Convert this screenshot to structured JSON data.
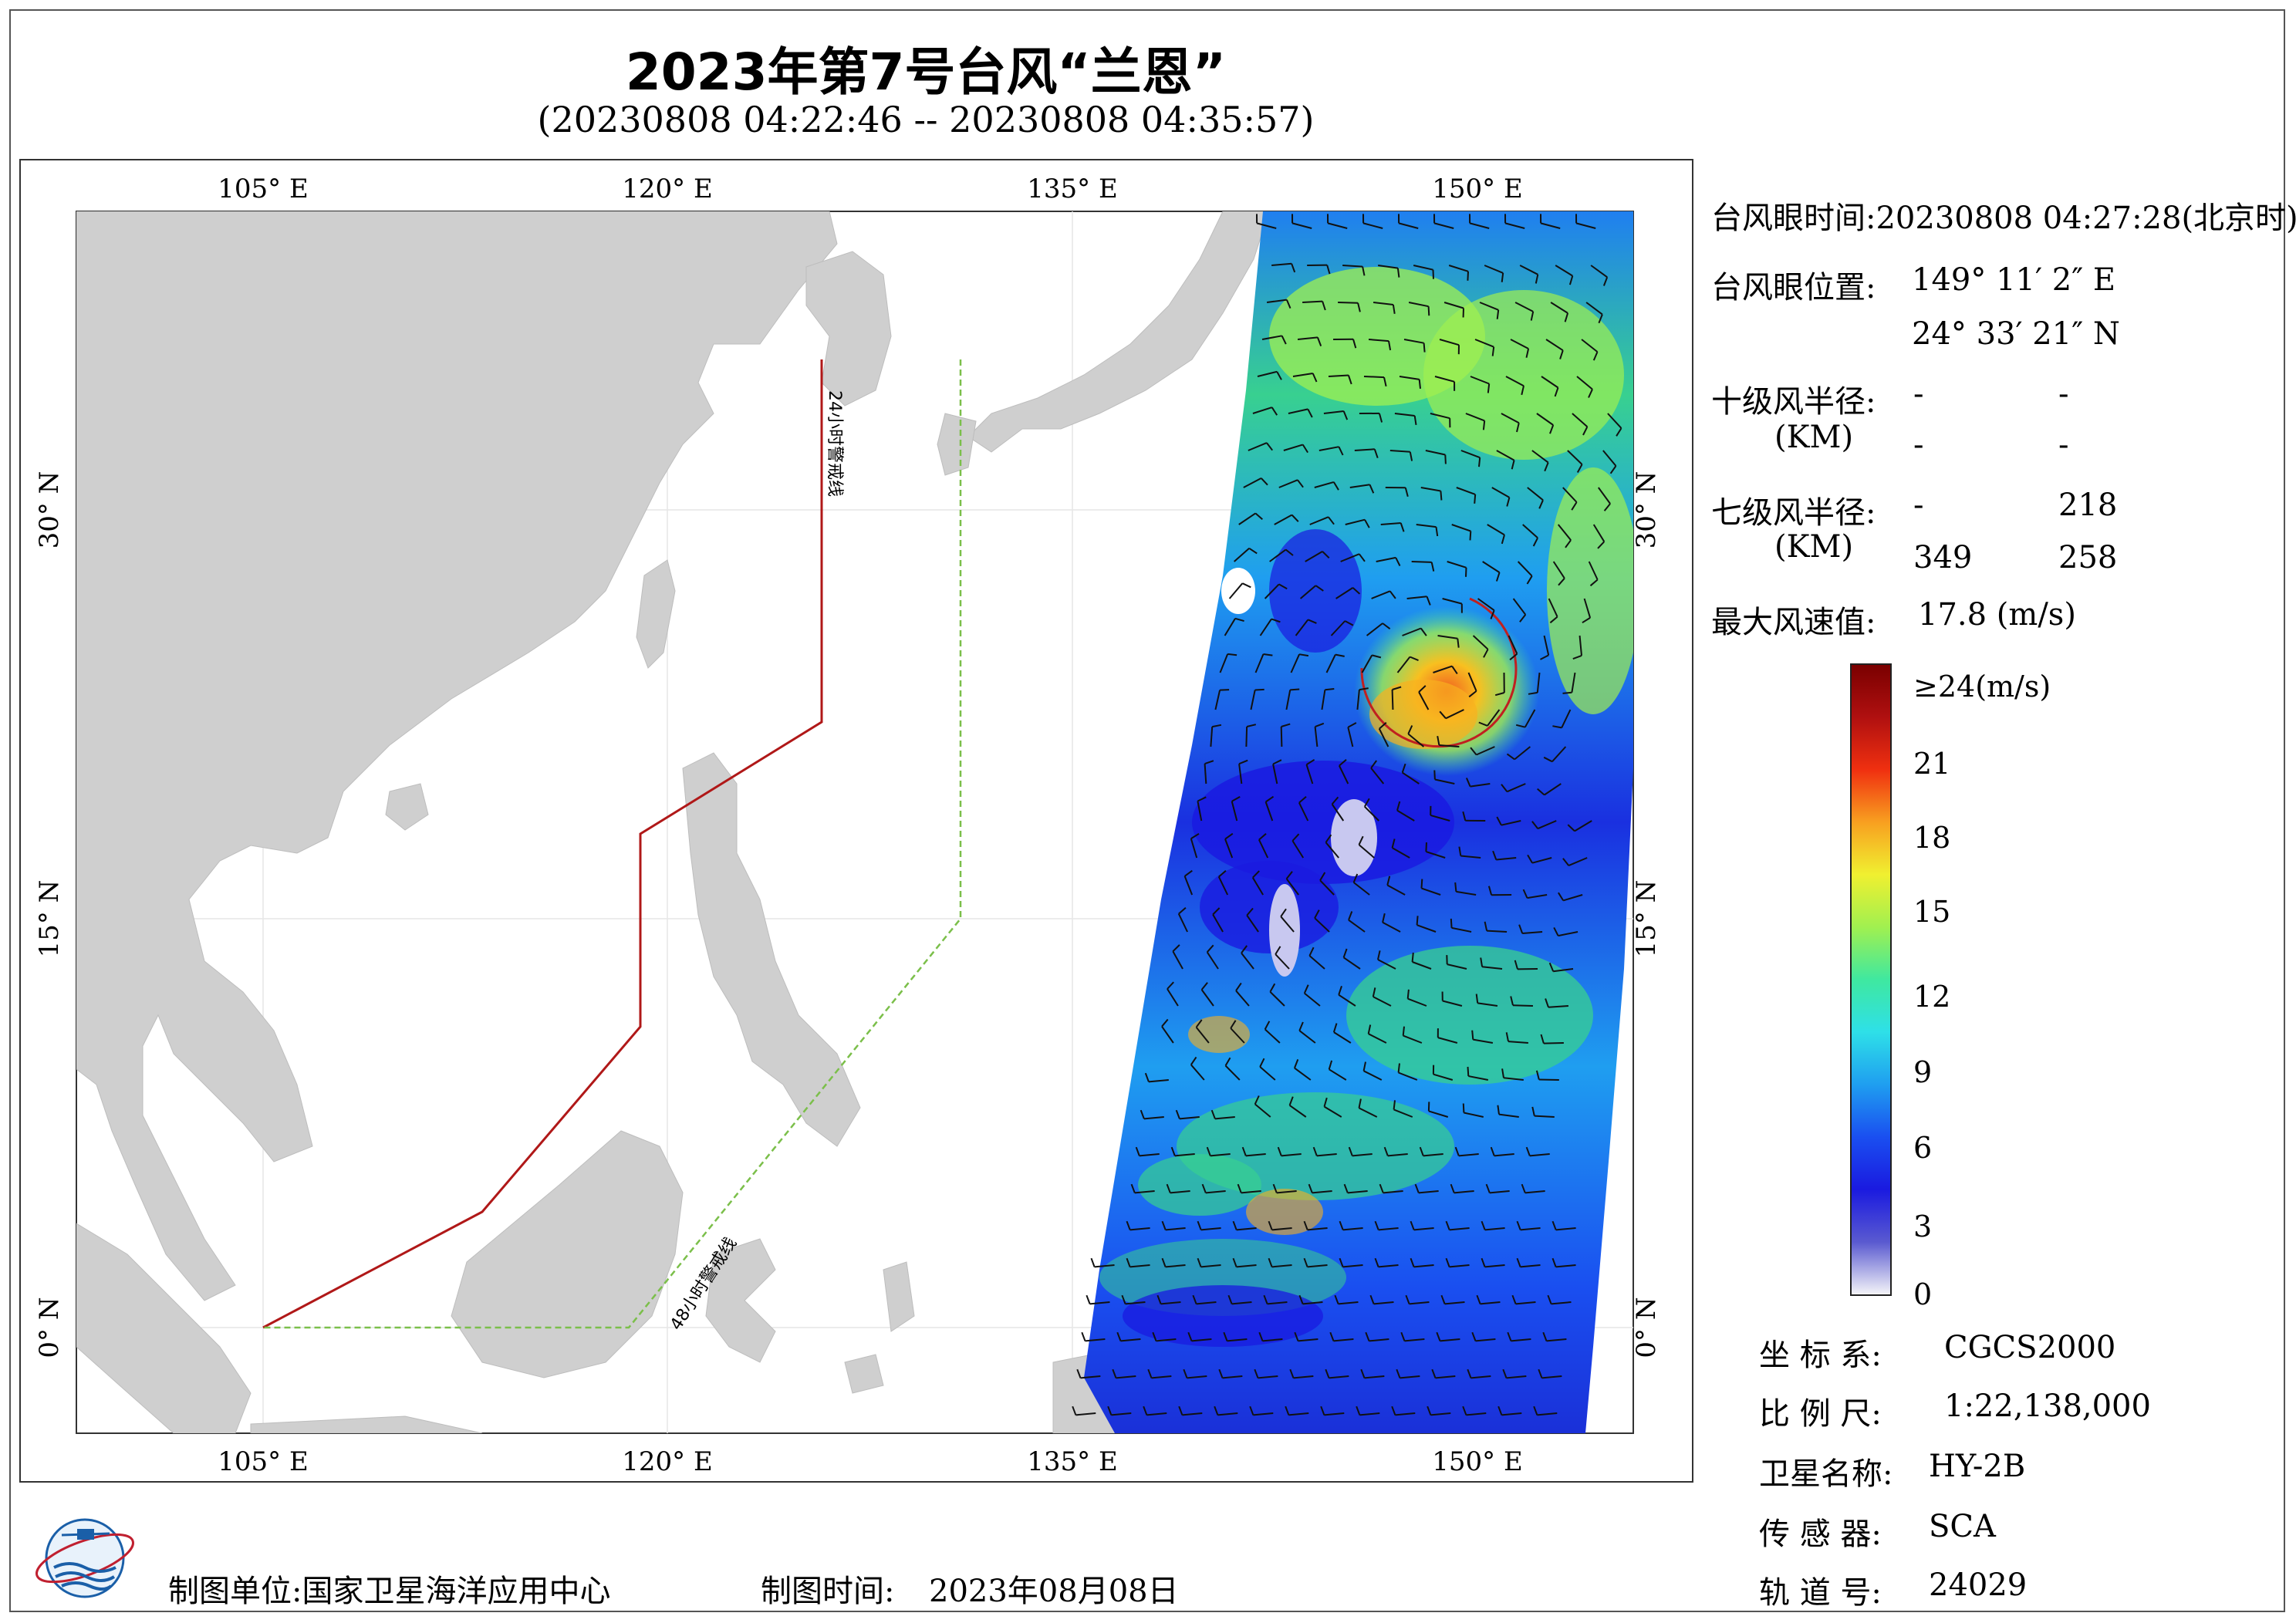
{
  "title": "2023年第7号台风“兰恩”",
  "subtitle": "(20230808 04:22:46 -- 20230808 04:35:57)",
  "map": {
    "top_lon_labels": [
      "105° E",
      "120° E",
      "135° E",
      "150° E"
    ],
    "bottom_lon_labels": [
      "105° E",
      "120° E",
      "135° E",
      "150° E"
    ],
    "left_lat_labels": [
      "30° N",
      "15° N",
      "0° N"
    ],
    "right_lat_labels": [
      "30° N",
      "15° N",
      "0° N"
    ],
    "line_24h_label": "24小时警戒线",
    "line_48h_label": "48小时警戒线",
    "colors": {
      "land": "#cfcfcf",
      "ocean": "#ffffff",
      "line_24h": "#b01818",
      "line_48h": "#7bbf4a"
    }
  },
  "info": {
    "eye_time_label": "台风眼时间:",
    "eye_time_value": "20230808 04:27:28(北京时)",
    "eye_pos_label": "台风眼位置:",
    "eye_lon": "149° 11′ 2″ E",
    "eye_lat": "24° 33′ 21″ N",
    "r10_label": "十级风半径:",
    "r10_unit": "(KM)",
    "r10_values": [
      "-",
      "-",
      "-",
      "-"
    ],
    "r7_label": "七级风半径:",
    "r7_unit": "(KM)",
    "r7_values": [
      "-",
      "218",
      "349",
      "258"
    ],
    "max_wind_label": "最大风速值:",
    "max_wind_value": "17.8  (m/s)"
  },
  "colorbar": {
    "labels": [
      "≥24(m/s)",
      "21",
      "18",
      "15",
      "12",
      "9",
      "6",
      "3",
      "0"
    ],
    "stops": [
      "#f4f4f8",
      "#5a5ad0",
      "#1a1ae0",
      "#1a4ff0",
      "#1f9ef0",
      "#2ee0e8",
      "#3fe8a0",
      "#a0f050",
      "#f0f030",
      "#f8a020",
      "#f03010",
      "#b01010",
      "#7a0000"
    ]
  },
  "meta": {
    "crs_label": "坐 标 系:",
    "crs_value": "CGCS2000",
    "scale_label": "比 例 尺:",
    "scale_value": "1:22,138,000",
    "satellite_label": "卫星名称:",
    "satellite_value": "HY-2B",
    "sensor_label": "传 感 器:",
    "sensor_value": "SCA",
    "orbit_label": "轨 道 号:",
    "orbit_value": "24029"
  },
  "footer": {
    "producer": "制图单位:国家卫星海洋应用中心",
    "time_label": "制图时间:",
    "time_value": "2023年08月08日"
  }
}
